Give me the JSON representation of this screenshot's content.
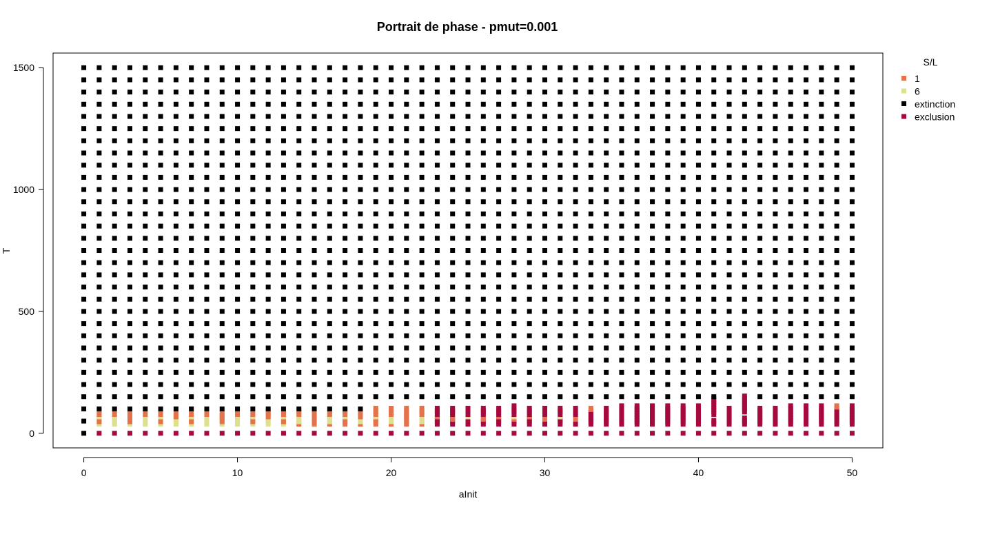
{
  "chart_data": {
    "type": "scatter",
    "title": "Portrait de phase - pmut=0.001",
    "xlabel": "aInit",
    "ylabel": "T",
    "xlim": [
      -2,
      52
    ],
    "ylim": [
      -60,
      1560
    ],
    "xticks": [
      0,
      10,
      20,
      30,
      40,
      50
    ],
    "yticks": [
      0,
      500,
      1000,
      1500
    ],
    "grid": false,
    "x_values": [
      0,
      1,
      2,
      3,
      4,
      5,
      6,
      7,
      8,
      9,
      10,
      11,
      12,
      13,
      14,
      15,
      16,
      17,
      18,
      19,
      20,
      21,
      22,
      23,
      24,
      25,
      26,
      27,
      28,
      29,
      30,
      31,
      32,
      33,
      34,
      35,
      36,
      37,
      38,
      39,
      40,
      41,
      42,
      43,
      44,
      45,
      46,
      47,
      48,
      49,
      50
    ],
    "y_step": 10,
    "legend": {
      "title": "S/L",
      "position": "right",
      "entries": [
        {
          "label": "1",
          "color": "#E4724A"
        },
        {
          "label": "6",
          "color": "#DDE08E"
        },
        {
          "label": "extinction",
          "color": "#000000"
        },
        {
          "label": "exclusion",
          "color": "#A6093D"
        }
      ]
    },
    "series": [
      {
        "name": "1",
        "color": "#E4724A",
        "description": "transitional band above T≈30 up to T≈110 for low aInit"
      },
      {
        "name": "6",
        "color": "#DDE08E",
        "description": "transitional band T≈40–90 for aInit 1–22"
      },
      {
        "name": "extinction",
        "color": "#000000",
        "description": "all T from the band top up to 1500 at every aInit, plus T=0 at aInit=0"
      },
      {
        "name": "exclusion",
        "color": "#A6093D",
        "description": "T=0 for aInit≥1 and lower band T≈30–110"
      }
    ],
    "band": {
      "low_aInit_top": [
        0,
        90,
        80,
        90,
        80,
        80,
        80,
        80,
        80,
        80,
        80,
        80,
        90,
        90,
        90,
        90,
        90,
        90,
        90,
        100,
        100,
        100,
        100,
        100,
        100,
        100,
        100,
        100,
        110,
        100,
        100,
        100,
        100,
        100,
        100,
        110,
        110,
        110,
        110,
        110,
        110,
        140,
        100,
        150,
        100,
        100,
        110,
        110,
        110,
        110,
        110
      ]
    }
  }
}
